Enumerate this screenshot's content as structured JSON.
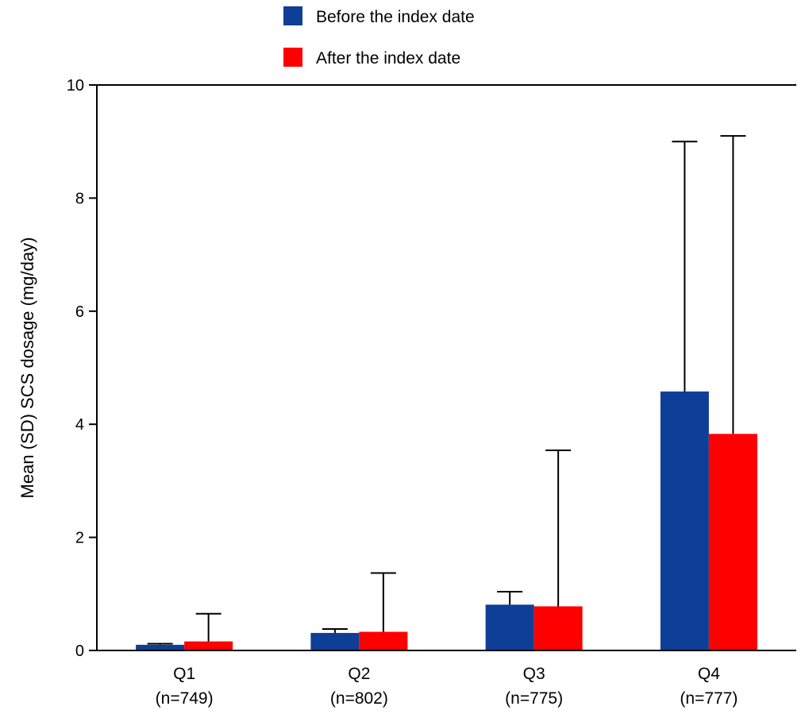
{
  "chart_data": {
    "type": "bar",
    "title": "",
    "xlabel": "",
    "ylabel": "Mean (SD) SCS dosage (mg/day)",
    "ylim": [
      0,
      10
    ],
    "yticks": [
      0,
      2,
      4,
      6,
      8,
      10
    ],
    "grid": false,
    "legend_position": "top-center",
    "categories": [
      {
        "name": "Q1",
        "n": "(n=749)"
      },
      {
        "name": "Q2",
        "n": "(n=802)"
      },
      {
        "name": "Q3",
        "n": "(n=775)"
      },
      {
        "name": "Q4",
        "n": "(n=777)"
      }
    ],
    "series": [
      {
        "name": "Before the index date",
        "color": "#0d3f96",
        "values": [
          0.1,
          0.31,
          0.81,
          4.58
        ],
        "sd_upper": [
          0.12,
          0.38,
          1.04,
          9.0
        ]
      },
      {
        "name": "After the index date",
        "color": "#ff0000",
        "values": [
          0.16,
          0.33,
          0.78,
          3.83
        ],
        "sd_upper": [
          0.65,
          1.37,
          3.54,
          9.1
        ]
      }
    ]
  }
}
